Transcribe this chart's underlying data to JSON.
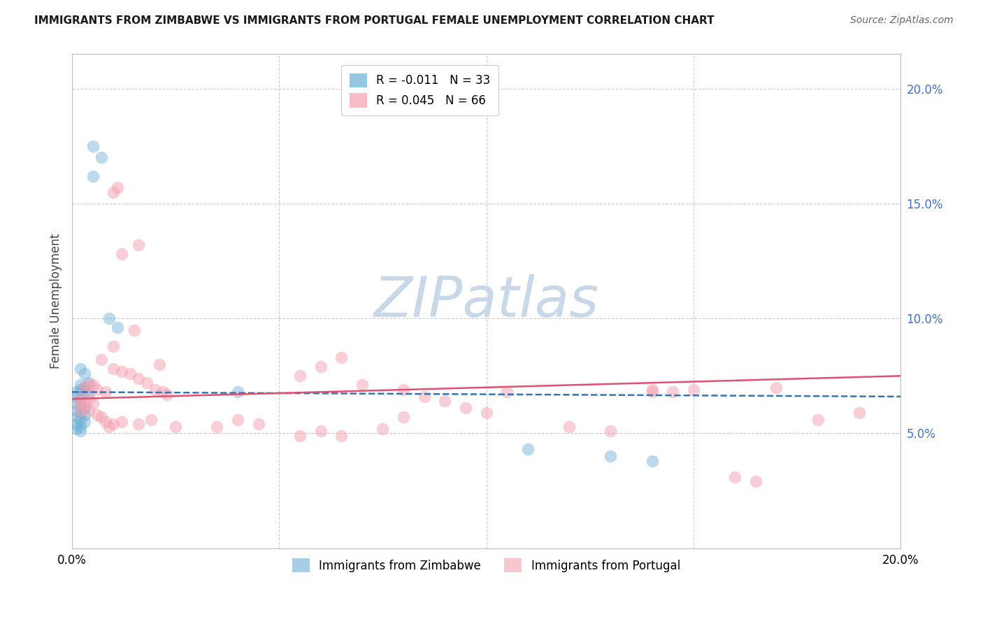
{
  "title": "IMMIGRANTS FROM ZIMBABWE VS IMMIGRANTS FROM PORTUGAL FEMALE UNEMPLOYMENT CORRELATION CHART",
  "source": "Source: ZipAtlas.com",
  "ylabel": "Female Unemployment",
  "xlim": [
    0.0,
    0.2
  ],
  "ylim": [
    0.0,
    0.215
  ],
  "ytick_values": [
    0.05,
    0.1,
    0.15,
    0.2
  ],
  "xtick_values": [
    0.0,
    0.05,
    0.1,
    0.15,
    0.2
  ],
  "legend1_label": "R = -0.011   N = 33",
  "legend2_label": "R = 0.045   N = 66",
  "legend1_color": "#6baed6",
  "legend2_color": "#f4a0b0",
  "watermark": "ZIPatlas",
  "watermark_color": "#c8d8e8",
  "background_color": "#ffffff",
  "grid_color": "#cccccc",
  "zimbabwe_color": "#6baed6",
  "portugal_color": "#f4a0b0",
  "zimbabwe_line_color": "#3575b5",
  "portugal_line_color": "#e05070",
  "zimbabwe_points": [
    [
      0.005,
      0.175
    ],
    [
      0.007,
      0.17
    ],
    [
      0.005,
      0.162
    ],
    [
      0.009,
      0.1
    ],
    [
      0.011,
      0.096
    ],
    [
      0.002,
      0.078
    ],
    [
      0.003,
      0.076
    ],
    [
      0.002,
      0.071
    ],
    [
      0.003,
      0.07
    ],
    [
      0.004,
      0.072
    ],
    [
      0.001,
      0.068
    ],
    [
      0.002,
      0.069
    ],
    [
      0.003,
      0.068
    ],
    [
      0.004,
      0.067
    ],
    [
      0.001,
      0.066
    ],
    [
      0.002,
      0.065
    ],
    [
      0.001,
      0.063
    ],
    [
      0.002,
      0.062
    ],
    [
      0.003,
      0.061
    ],
    [
      0.001,
      0.06
    ],
    [
      0.002,
      0.059
    ],
    [
      0.003,
      0.058
    ],
    [
      0.001,
      0.057
    ],
    [
      0.002,
      0.056
    ],
    [
      0.003,
      0.055
    ],
    [
      0.001,
      0.054
    ],
    [
      0.002,
      0.053
    ],
    [
      0.001,
      0.052
    ],
    [
      0.002,
      0.051
    ],
    [
      0.04,
      0.068
    ],
    [
      0.11,
      0.043
    ],
    [
      0.13,
      0.04
    ],
    [
      0.14,
      0.038
    ]
  ],
  "portugal_points": [
    [
      0.01,
      0.155
    ],
    [
      0.011,
      0.157
    ],
    [
      0.016,
      0.132
    ],
    [
      0.012,
      0.128
    ],
    [
      0.015,
      0.095
    ],
    [
      0.01,
      0.088
    ],
    [
      0.007,
      0.082
    ],
    [
      0.021,
      0.08
    ],
    [
      0.01,
      0.078
    ],
    [
      0.012,
      0.077
    ],
    [
      0.014,
      0.076
    ],
    [
      0.016,
      0.074
    ],
    [
      0.018,
      0.072
    ],
    [
      0.005,
      0.071
    ],
    [
      0.003,
      0.07
    ],
    [
      0.004,
      0.071
    ],
    [
      0.006,
      0.069
    ],
    [
      0.008,
      0.068
    ],
    [
      0.02,
      0.069
    ],
    [
      0.022,
      0.068
    ],
    [
      0.023,
      0.067
    ],
    [
      0.004,
      0.065
    ],
    [
      0.005,
      0.063
    ],
    [
      0.003,
      0.062
    ],
    [
      0.004,
      0.06
    ],
    [
      0.006,
      0.058
    ],
    [
      0.007,
      0.057
    ],
    [
      0.008,
      0.055
    ],
    [
      0.009,
      0.053
    ],
    [
      0.01,
      0.054
    ],
    [
      0.012,
      0.055
    ],
    [
      0.016,
      0.054
    ],
    [
      0.019,
      0.056
    ],
    [
      0.002,
      0.065
    ],
    [
      0.002,
      0.063
    ],
    [
      0.002,
      0.06
    ],
    [
      0.055,
      0.075
    ],
    [
      0.06,
      0.079
    ],
    [
      0.065,
      0.083
    ],
    [
      0.07,
      0.071
    ],
    [
      0.08,
      0.069
    ],
    [
      0.085,
      0.066
    ],
    [
      0.09,
      0.064
    ],
    [
      0.095,
      0.061
    ],
    [
      0.1,
      0.059
    ],
    [
      0.105,
      0.068
    ],
    [
      0.12,
      0.053
    ],
    [
      0.13,
      0.051
    ],
    [
      0.14,
      0.068
    ],
    [
      0.15,
      0.069
    ],
    [
      0.17,
      0.07
    ],
    [
      0.035,
      0.053
    ],
    [
      0.04,
      0.056
    ],
    [
      0.045,
      0.054
    ],
    [
      0.055,
      0.049
    ],
    [
      0.06,
      0.051
    ],
    [
      0.065,
      0.049
    ],
    [
      0.075,
      0.052
    ],
    [
      0.08,
      0.057
    ],
    [
      0.16,
      0.031
    ],
    [
      0.165,
      0.029
    ],
    [
      0.18,
      0.056
    ],
    [
      0.19,
      0.059
    ],
    [
      0.14,
      0.069
    ],
    [
      0.145,
      0.068
    ],
    [
      0.025,
      0.053
    ]
  ]
}
